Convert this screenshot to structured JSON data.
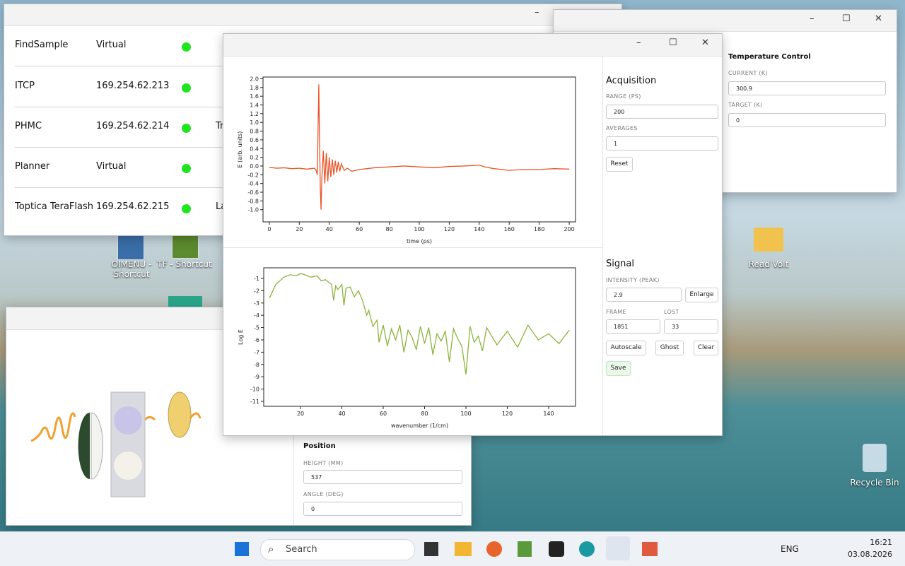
{
  "desktop": {
    "icons": [
      "OIMENU - Shortcut",
      "TF - Shortcut",
      "Read Volt",
      "Recycle Bin"
    ]
  },
  "devices": {
    "rows": [
      {
        "name": "FindSample",
        "address": "Virtual"
      },
      {
        "name": "ITCP",
        "address": "169.254.62.213"
      },
      {
        "name": "PHMC",
        "address": "169.254.62.214",
        "note": "Tr"
      },
      {
        "name": "Planner",
        "address": "Virtual"
      },
      {
        "name": "Toptica TeraFlash",
        "address": "169.254.62.215",
        "note": "La"
      }
    ]
  },
  "temperature": {
    "title": "Temperature Control",
    "current_label": "CURRENT (K)",
    "current": "300.9",
    "target_label": "TARGET (K)",
    "target": "0"
  },
  "acquisition": {
    "title": "Acquisition",
    "range_label": "RANGE (PS)",
    "range": "200",
    "averages_label": "AVERAGES",
    "averages": "1",
    "reset": "Reset"
  },
  "signal": {
    "title": "Signal",
    "intensity_label": "INTENSITY (PEAK)",
    "intensity": "2.9",
    "enlarge": "Enlarge",
    "frame_label": "FRAME",
    "frame": "1851",
    "lost_label": "LOST",
    "lost": "33",
    "autoscale": "Autoscale",
    "ghost": "Ghost",
    "clear": "Clear",
    "save": "Save"
  },
  "position": {
    "title": "Position",
    "height_label": "HEIGHT (MM)",
    "height": "537",
    "angle_label": "ANGLE (DEG)",
    "angle": "0"
  },
  "taskbar": {
    "search": "Search",
    "language": "ENG",
    "time": "16:21",
    "date": "03.08.2026"
  },
  "chart_data": [
    {
      "type": "line",
      "x_label": "time (ps)",
      "y_label": "E (arb. units)",
      "color": "#e8562a",
      "xlim": [
        -4.2,
        204.2
      ],
      "ylim": [
        -1.28,
        2.04
      ],
      "xticks": [
        0,
        20,
        40,
        60,
        80,
        100,
        120,
        140,
        160,
        180,
        200
      ],
      "yticks": [
        {
          "value": -1.0,
          "label": "-1.0"
        },
        -0.8,
        -0.6,
        -0.4,
        -0.2,
        {
          "value": 0.0,
          "label": "0.0"
        },
        0.2,
        0.4,
        0.6,
        0.8,
        {
          "value": 1.0,
          "label": "1.0"
        },
        1.2,
        1.4,
        1.6,
        1.8,
        {
          "value": 2.0,
          "label": "2.0"
        }
      ],
      "x": [
        0,
        5,
        10,
        15,
        20,
        25,
        30,
        31,
        32,
        33,
        33.5,
        34,
        34.5,
        35,
        36,
        37,
        38,
        39,
        40,
        41,
        42,
        43,
        44,
        45,
        46,
        47,
        48,
        50,
        52,
        55,
        60,
        65,
        70,
        80,
        90,
        100,
        110,
        120,
        130,
        140,
        145,
        150,
        160,
        170,
        180,
        190,
        200
      ],
      "values": [
        -0.03,
        -0.05,
        -0.04,
        -0.06,
        -0.05,
        -0.07,
        -0.05,
        -0.08,
        -0.2,
        1.87,
        0.6,
        -0.5,
        -1.0,
        -0.3,
        0.35,
        -0.4,
        0.3,
        -0.35,
        0.2,
        -0.25,
        0.15,
        -0.2,
        0.12,
        -0.15,
        0.1,
        -0.12,
        0.05,
        -0.1,
        -0.05,
        -0.12,
        -0.08,
        -0.06,
        -0.04,
        -0.02,
        0.0,
        -0.02,
        -0.04,
        -0.01,
        0.0,
        0.02,
        -0.03,
        -0.06,
        -0.1,
        -0.08,
        -0.08,
        -0.06,
        -0.07
      ]
    },
    {
      "type": "line",
      "x_label": "wavenumber (1/cm)",
      "y_label": "Log E",
      "color": "#8cb33a",
      "xlim": [
        2.2,
        153
      ],
      "ylim": [
        -11.4,
        -0.14
      ],
      "xticks": [
        20,
        40,
        60,
        80,
        100,
        120,
        140
      ],
      "yticks": [
        -1,
        -2,
        -3,
        -4,
        -5,
        -6,
        -7,
        -8,
        -9,
        -10,
        -11
      ],
      "x": [
        5,
        8,
        10,
        12,
        15,
        18,
        20,
        22,
        25,
        28,
        30,
        32,
        35,
        36,
        37,
        38,
        40,
        41,
        42,
        44,
        46,
        48,
        50,
        52,
        53,
        55,
        57,
        58,
        60,
        62,
        64,
        66,
        68,
        70,
        72,
        74,
        76,
        78,
        80,
        82,
        84,
        86,
        88,
        90,
        92,
        94,
        96,
        98,
        100,
        102,
        104,
        106,
        108,
        110,
        115,
        120,
        125,
        130,
        135,
        140,
        145,
        150
      ],
      "values": [
        -2.6,
        -1.5,
        -1.2,
        -0.9,
        -0.7,
        -0.8,
        -0.6,
        -0.7,
        -0.9,
        -0.8,
        -1.2,
        -1.1,
        -1.5,
        -2.8,
        -1.6,
        -1.9,
        -1.5,
        -3.2,
        -1.8,
        -1.7,
        -2.5,
        -2.0,
        -2.8,
        -4.0,
        -3.6,
        -4.9,
        -4.4,
        -6.2,
        -4.8,
        -6.5,
        -5.1,
        -6.0,
        -4.8,
        -7.0,
        -5.2,
        -5.8,
        -6.8,
        -4.9,
        -6.3,
        -5.0,
        -7.2,
        -5.5,
        -6.1,
        -5.3,
        -7.8,
        -5.1,
        -5.9,
        -6.5,
        -8.8,
        -4.9,
        -6.2,
        -5.7,
        -6.9,
        -5.0,
        -6.4,
        -5.3,
        -6.6,
        -4.8,
        -6.0,
        -5.5,
        -6.3,
        -5.2
      ]
    }
  ]
}
